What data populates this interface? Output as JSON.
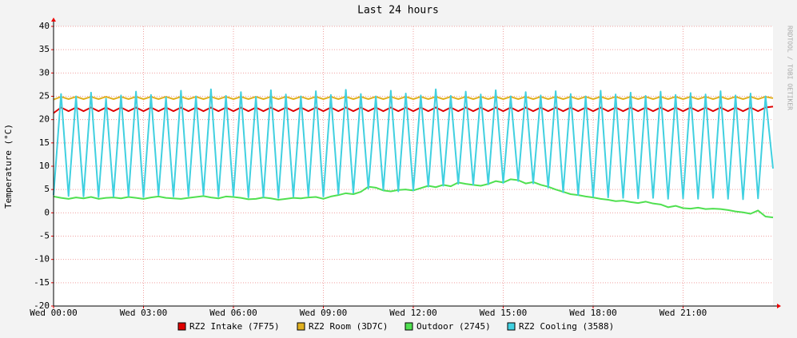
{
  "chart_data": {
    "type": "line",
    "title": "Last 24 hours",
    "y_label": "Temperature (°C)",
    "watermark": "RRDTOOL / TOBI OETIKER",
    "xlim": [
      0,
      24
    ],
    "ylim": [
      -20,
      40
    ],
    "yticks": [
      -20,
      -15,
      -10,
      -5,
      0,
      5,
      10,
      15,
      20,
      25,
      30,
      35,
      40
    ],
    "xticks": [
      {
        "value": 0,
        "label": "Wed 00:00"
      },
      {
        "value": 3,
        "label": "Wed 03:00"
      },
      {
        "value": 6,
        "label": "Wed 06:00"
      },
      {
        "value": 9,
        "label": "Wed 09:00"
      },
      {
        "value": 12,
        "label": "Wed 12:00"
      },
      {
        "value": 15,
        "label": "Wed 15:00"
      },
      {
        "value": 18,
        "label": "Wed 18:00"
      },
      {
        "value": 21,
        "label": "Wed 21:00"
      }
    ],
    "grid": true,
    "x": [
      0,
      0.25,
      0.5,
      0.75,
      1,
      1.25,
      1.5,
      1.75,
      2,
      2.25,
      2.5,
      2.75,
      3,
      3.25,
      3.5,
      3.75,
      4,
      4.25,
      4.5,
      4.75,
      5,
      5.25,
      5.5,
      5.75,
      6,
      6.25,
      6.5,
      6.75,
      7,
      7.25,
      7.5,
      7.75,
      8,
      8.25,
      8.5,
      8.75,
      9,
      9.25,
      9.5,
      9.75,
      10,
      10.25,
      10.5,
      10.75,
      11,
      11.25,
      11.5,
      11.75,
      12,
      12.25,
      12.5,
      12.75,
      13,
      13.25,
      13.5,
      13.75,
      14,
      14.25,
      14.5,
      14.75,
      15,
      15.25,
      15.5,
      15.75,
      16,
      16.25,
      16.5,
      16.75,
      17,
      17.25,
      17.5,
      17.75,
      18,
      18.25,
      18.5,
      18.75,
      19,
      19.25,
      19.5,
      19.75,
      20,
      20.25,
      20.5,
      20.75,
      21,
      21.25,
      21.5,
      21.75,
      22,
      22.25,
      22.5,
      22.75,
      23,
      23.25,
      23.5,
      23.75,
      24
    ],
    "series": [
      {
        "name": "RZ2 Intake (7F75)",
        "color": "#e00000",
        "values": [
          21.4,
          22.6,
          21.8,
          22.6,
          21.8,
          22.6,
          21.8,
          22.6,
          21.8,
          22.6,
          21.8,
          22.6,
          21.8,
          22.6,
          21.8,
          22.6,
          21.8,
          22.6,
          21.8,
          22.6,
          21.8,
          22.6,
          21.8,
          22.6,
          21.8,
          22.6,
          21.8,
          22.6,
          21.8,
          22.6,
          21.8,
          22.6,
          21.8,
          22.6,
          21.8,
          22.6,
          21.8,
          22.6,
          21.8,
          22.6,
          21.8,
          22.6,
          21.8,
          22.6,
          21.8,
          22.6,
          21.8,
          22.6,
          21.8,
          22.6,
          21.8,
          22.6,
          21.8,
          22.6,
          21.8,
          22.6,
          21.8,
          22.6,
          21.8,
          22.6,
          21.8,
          22.6,
          21.8,
          22.6,
          21.8,
          22.6,
          21.8,
          22.6,
          21.8,
          22.6,
          21.8,
          22.6,
          21.8,
          22.6,
          21.8,
          22.6,
          21.8,
          22.6,
          21.8,
          22.6,
          21.8,
          22.6,
          21.8,
          22.6,
          21.8,
          22.6,
          21.8,
          22.6,
          21.8,
          22.6,
          21.8,
          22.6,
          21.8,
          22.6,
          21.8,
          22.6,
          22.8
        ]
      },
      {
        "name": "RZ2 Room (3D7C)",
        "color": "#e0b020",
        "values": [
          24.3,
          24.9,
          24.4,
          24.9,
          24.4,
          24.9,
          24.4,
          24.9,
          24.4,
          24.9,
          24.4,
          24.9,
          24.4,
          24.9,
          24.4,
          24.9,
          24.4,
          24.9,
          24.4,
          24.9,
          24.4,
          24.9,
          24.4,
          24.9,
          24.4,
          24.9,
          24.4,
          24.9,
          24.4,
          24.9,
          24.4,
          24.9,
          24.4,
          24.9,
          24.4,
          24.9,
          24.4,
          24.9,
          24.4,
          24.9,
          24.4,
          24.9,
          24.4,
          24.9,
          24.4,
          24.9,
          24.4,
          24.9,
          24.4,
          24.9,
          24.4,
          24.9,
          24.4,
          24.9,
          24.4,
          24.9,
          24.4,
          24.9,
          24.4,
          24.9,
          24.4,
          24.9,
          24.4,
          24.9,
          24.4,
          24.9,
          24.4,
          24.9,
          24.4,
          24.9,
          24.4,
          24.9,
          24.4,
          24.9,
          24.4,
          24.9,
          24.4,
          24.9,
          24.4,
          24.9,
          24.4,
          24.9,
          24.4,
          24.9,
          24.4,
          24.9,
          24.4,
          24.9,
          24.4,
          24.9,
          24.4,
          24.9,
          24.4,
          24.9,
          24.4,
          24.9,
          24.6
        ]
      },
      {
        "name": "Outdoor (2745)",
        "color": "#50e050",
        "values": [
          3.5,
          3.2,
          3.0,
          3.3,
          3.1,
          3.4,
          3.0,
          3.2,
          3.3,
          3.1,
          3.4,
          3.2,
          3.0,
          3.3,
          3.5,
          3.2,
          3.1,
          3.0,
          3.2,
          3.4,
          3.6,
          3.3,
          3.1,
          3.5,
          3.4,
          3.2,
          2.9,
          3.0,
          3.3,
          3.1,
          2.8,
          3.0,
          3.2,
          3.1,
          3.3,
          3.4,
          3.0,
          3.5,
          3.8,
          4.2,
          4.0,
          4.5,
          5.6,
          5.4,
          4.8,
          4.6,
          4.9,
          5.0,
          4.8,
          5.3,
          5.8,
          5.5,
          6.0,
          5.7,
          6.5,
          6.2,
          6.0,
          5.8,
          6.2,
          6.8,
          6.5,
          7.2,
          7.0,
          6.3,
          6.6,
          6.0,
          5.6,
          5.0,
          4.5,
          4.0,
          3.8,
          3.5,
          3.3,
          3.0,
          2.8,
          2.5,
          2.6,
          2.3,
          2.1,
          2.4,
          2.0,
          1.8,
          1.2,
          1.5,
          1.0,
          0.9,
          1.1,
          0.8,
          0.9,
          0.8,
          0.6,
          0.3,
          0.1,
          -0.2,
          0.5,
          -0.8,
          -1.0
        ]
      },
      {
        "name": "RZ2 Cooling (3588)",
        "color": "#40d0e0",
        "values": [
          3.8,
          25.5,
          3.6,
          25.0,
          3.5,
          25.8,
          3.4,
          24.5,
          3.5,
          25.2,
          3.6,
          26.0,
          3.4,
          25.3,
          3.8,
          24.8,
          3.5,
          26.2,
          3.6,
          25.0,
          3.9,
          26.5,
          3.5,
          25.1,
          3.7,
          25.9,
          3.3,
          24.9,
          3.4,
          26.3,
          3.2,
          25.4,
          3.5,
          25.0,
          3.6,
          26.1,
          3.5,
          25.3,
          4.0,
          26.4,
          4.3,
          25.5,
          5.2,
          25.0,
          4.9,
          26.2,
          4.6,
          25.6,
          4.8,
          25.2,
          5.6,
          26.5,
          5.8,
          25.1,
          6.2,
          26.0,
          6.0,
          25.4,
          6.1,
          26.3,
          6.4,
          25.0,
          6.8,
          25.9,
          6.3,
          25.2,
          5.4,
          26.1,
          4.4,
          25.5,
          3.8,
          25.0,
          3.5,
          26.2,
          3.3,
          25.4,
          3.2,
          25.8,
          3.1,
          25.1,
          3.2,
          26.0,
          3.0,
          25.3,
          3.1,
          25.7,
          3.0,
          25.4,
          3.2,
          26.1,
          3.0,
          25.2,
          2.9,
          25.6,
          3.1,
          25.0,
          9.5
        ]
      }
    ]
  }
}
